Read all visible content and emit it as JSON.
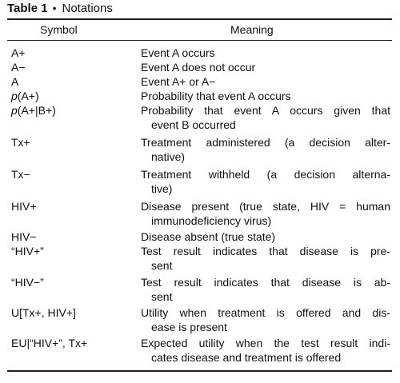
{
  "table": {
    "title": "Table 1",
    "bullet": "•",
    "subtitle": "Notations",
    "header_symbol": "Symbol",
    "header_meaning": "Meaning",
    "rows": [
      {
        "symbol": "A+",
        "meaning": [
          "Event A occurs"
        ]
      },
      {
        "symbol": "A−",
        "meaning": [
          "Event A does not occur"
        ]
      },
      {
        "symbol": "A",
        "meaning": [
          "Event A+ or A−"
        ]
      },
      {
        "symbol": "p(A+)",
        "meaning": [
          "Probability that event A occurs"
        ]
      },
      {
        "symbol": "p(A+|B+)",
        "meaning": [
          "Probability that event A occurs given that",
          "event B occurred"
        ]
      },
      {
        "symbol": "Tx+",
        "meaning": [
          "Treatment administered (a decision alter-",
          "native)"
        ]
      },
      {
        "symbol": "Tx−",
        "meaning": [
          "Treatment withheld (a decision alterna-",
          "tive)"
        ]
      },
      {
        "symbol": "HIV+",
        "meaning": [
          "Disease present (true state, HIV = human",
          "immunodeficiency virus)"
        ]
      },
      {
        "symbol": "HIV−",
        "meaning": [
          "Disease absent (true state)"
        ]
      },
      {
        "symbol": "“HIV+”",
        "meaning": [
          "Test result indicates that disease is pre-",
          "sent"
        ]
      },
      {
        "symbol": "“HIV−”",
        "meaning": [
          "Test result indicates that disease is ab-",
          "sent"
        ]
      },
      {
        "symbol": "U[Tx+, HIV+]",
        "meaning": [
          "Utility when treatment is offered and dis-",
          "ease is present"
        ]
      },
      {
        "symbol": "EU|“HIV+”, Tx+",
        "meaning": [
          "Expected utility when the test result indi-",
          "cates disease and treatment is offered"
        ]
      }
    ]
  }
}
